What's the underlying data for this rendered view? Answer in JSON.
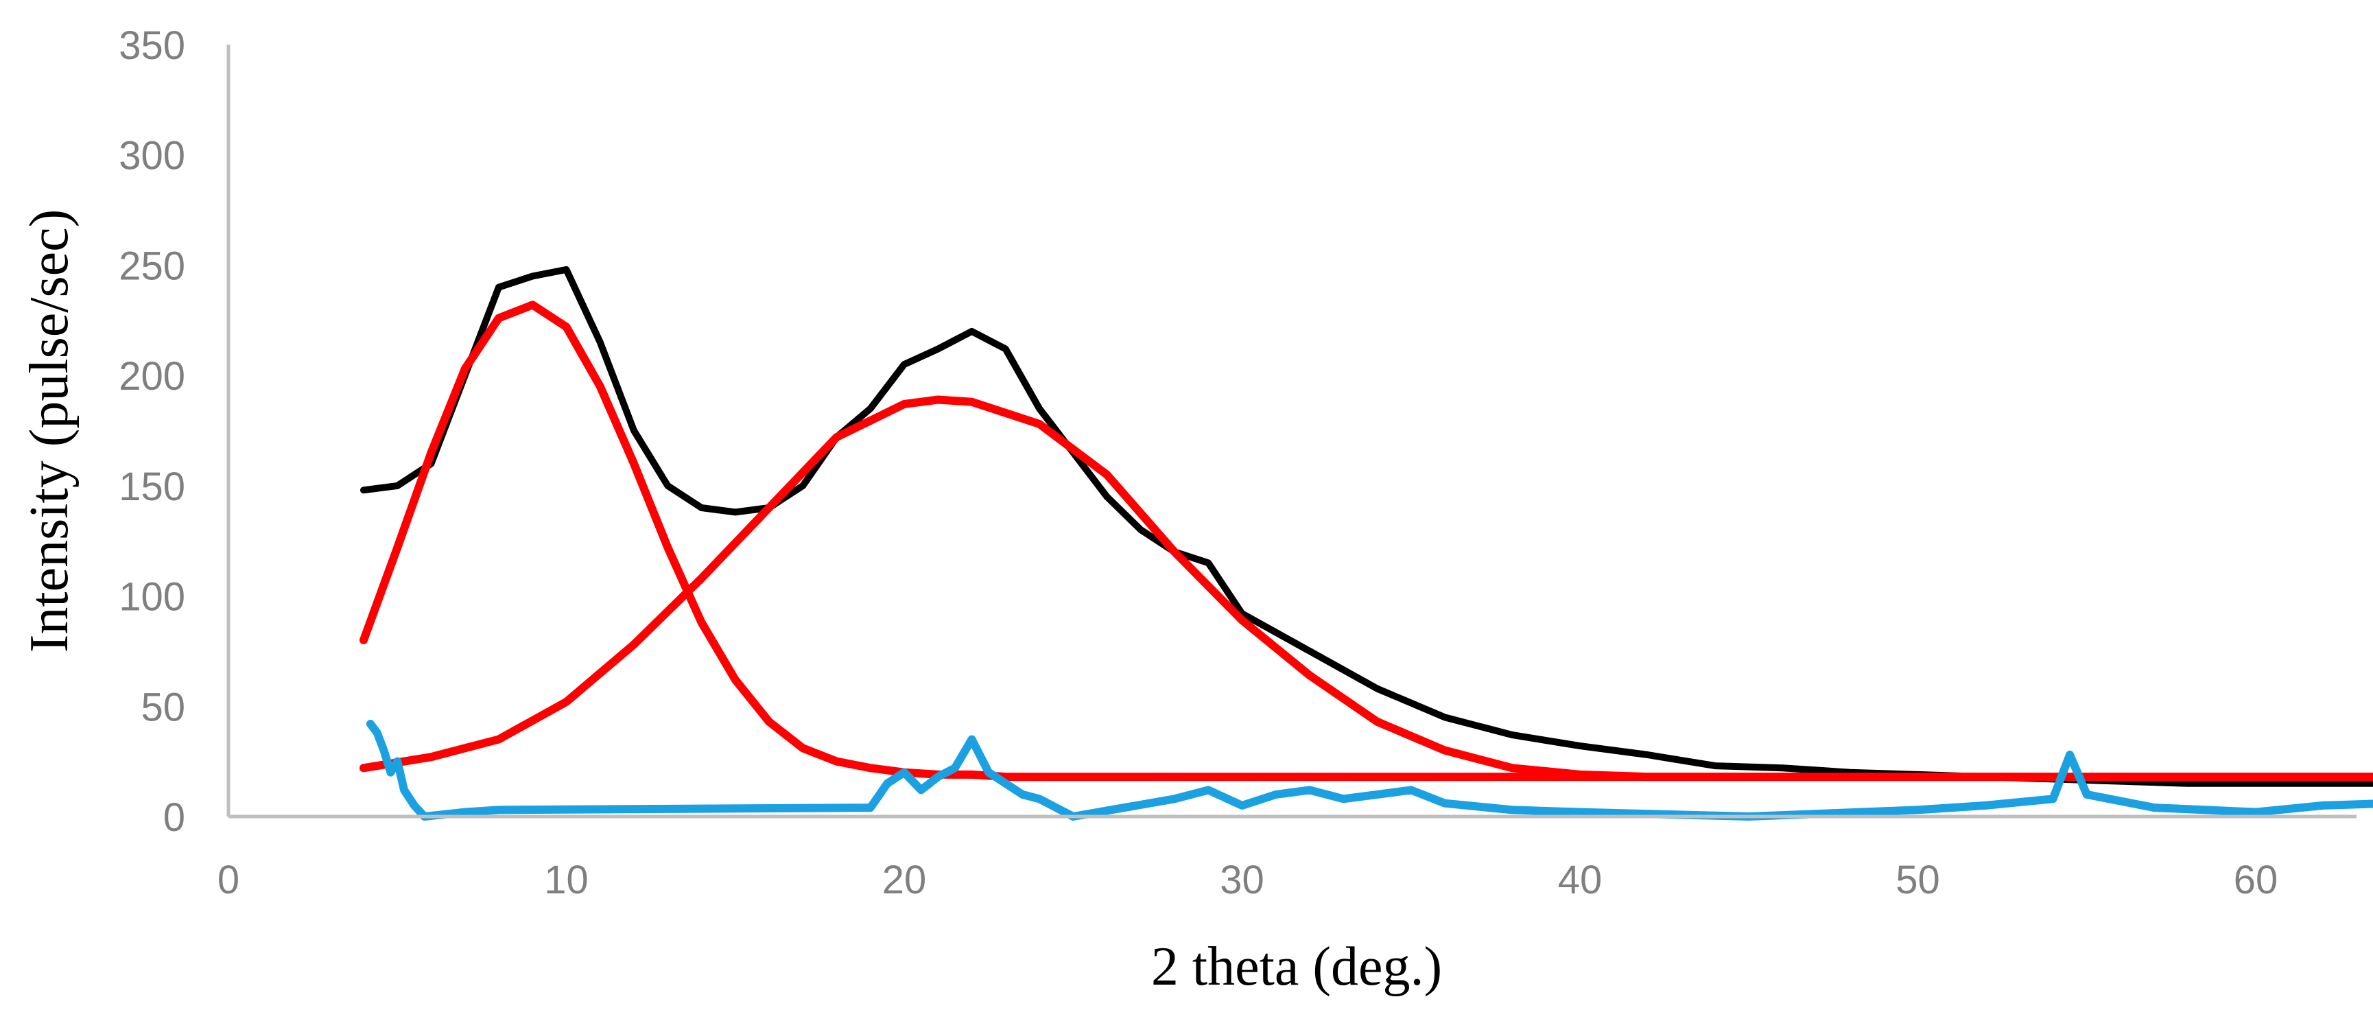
{
  "chart_data": {
    "type": "line",
    "title": "",
    "xlabel": "2 theta (deg.)",
    "ylabel": "Intensity (pulse/sec)",
    "xlim": [
      0,
      64
    ],
    "ylim": [
      0,
      350
    ],
    "xticks": [
      0,
      10,
      20,
      30,
      40,
      50,
      60
    ],
    "yticks": [
      0,
      50,
      100,
      150,
      200,
      250,
      300,
      350
    ],
    "grid": false,
    "legend": "none",
    "colors": {
      "measured": "#000000",
      "fit": "#ff0000",
      "residual": "#1ba1e2",
      "axis": "#bfbfbf",
      "tick_text": "#7f7f7f"
    },
    "series": [
      {
        "color": "#000000",
        "x": [
          4,
          5,
          6,
          7,
          8,
          9,
          10,
          11,
          12,
          13,
          14,
          15,
          16,
          17,
          18,
          19,
          20,
          21,
          22,
          23,
          24,
          25,
          26,
          27,
          28,
          29,
          30,
          32,
          34,
          36,
          38,
          40,
          42,
          44,
          46,
          48,
          50,
          52,
          54,
          56,
          58,
          60,
          62,
          64
        ],
        "y": [
          148,
          150,
          160,
          200,
          240,
          245,
          248,
          215,
          175,
          150,
          140,
          138,
          140,
          150,
          172,
          185,
          205,
          212,
          220,
          212,
          185,
          165,
          145,
          130,
          120,
          115,
          92,
          75,
          58,
          45,
          37,
          32,
          28,
          23,
          22,
          20,
          19,
          18,
          17,
          16,
          15,
          15,
          15,
          15
        ]
      },
      {
        "color": "#ff0000",
        "x": [
          4,
          5,
          6,
          7,
          8,
          9,
          10,
          11,
          12,
          13,
          14,
          15,
          16,
          17,
          18,
          19,
          20,
          21,
          22,
          23,
          24,
          25,
          26,
          27,
          28,
          29,
          30,
          32,
          34,
          36,
          38,
          40,
          45,
          50,
          55,
          60,
          64
        ],
        "y": [
          80,
          122,
          165,
          203,
          226,
          232,
          222,
          195,
          160,
          122,
          88,
          62,
          43,
          31,
          25,
          22,
          20,
          19,
          19,
          18,
          18,
          18,
          18,
          18,
          18,
          18,
          18,
          18,
          18,
          18,
          18,
          18,
          18,
          18,
          18,
          18,
          18
        ]
      },
      {
        "color": "#ff0000",
        "x": [
          4,
          6,
          8,
          10,
          12,
          14,
          16,
          18,
          20,
          21,
          22,
          24,
          26,
          28,
          30,
          32,
          34,
          36,
          38,
          40,
          42,
          45,
          50,
          55,
          60,
          64
        ],
        "y": [
          22,
          27,
          35,
          52,
          78,
          108,
          140,
          172,
          187,
          189,
          188,
          178,
          155,
          120,
          89,
          64,
          43,
          30,
          22,
          19,
          18,
          18,
          18,
          18,
          18,
          18
        ]
      },
      {
        "color": "#1ba1e2",
        "x": [
          4.2,
          4.4,
          4.6,
          4.8,
          5.0,
          5.2,
          5.5,
          5.8,
          7,
          8,
          19,
          19.5,
          20,
          20.5,
          21,
          21.5,
          22,
          22.5,
          23,
          23.5,
          24,
          25,
          28,
          29,
          30,
          31,
          32,
          33,
          34,
          35,
          36,
          38,
          40,
          45,
          50,
          52,
          54,
          54.5,
          55,
          57,
          60,
          62,
          64
        ],
        "y": [
          42,
          38,
          30,
          20,
          25,
          12,
          5,
          0,
          2,
          3,
          4,
          15,
          20,
          12,
          18,
          22,
          35,
          20,
          15,
          10,
          8,
          0,
          8,
          12,
          5,
          10,
          12,
          8,
          10,
          12,
          6,
          3,
          2,
          0,
          3,
          5,
          8,
          28,
          10,
          4,
          2,
          5,
          6
        ]
      }
    ]
  }
}
